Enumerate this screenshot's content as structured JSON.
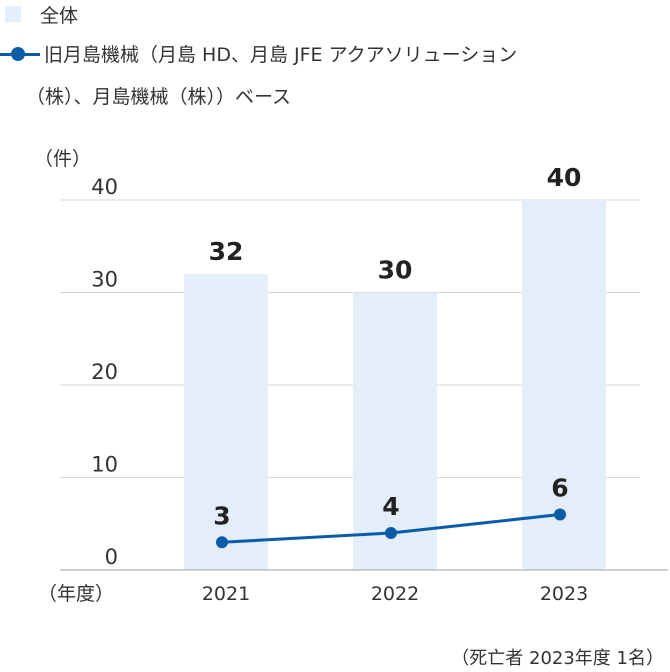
{
  "chart_data": {
    "type": "bar",
    "categories": [
      "2021",
      "2022",
      "2023"
    ],
    "series": [
      {
        "name": "全体",
        "kind": "bar",
        "values": [
          32,
          30,
          40
        ],
        "color": "#e3eef9"
      },
      {
        "name": "旧月島機械（月島 HD、月島 JFE アクアソリューション",
        "name_cont": "（株）、月島機械（株））ベース",
        "kind": "line",
        "values": [
          3,
          4,
          6
        ],
        "color": "#0a5ca8"
      }
    ],
    "ylabel": "（件）",
    "xlabel": "（年度）",
    "yticks": [
      "0",
      "10",
      "20",
      "30",
      "40"
    ],
    "ylim": [
      0,
      40
    ],
    "grid": true,
    "legend": "top-left",
    "note": "（死亡者 2023年度 1名）",
    "colors": {
      "bar": "#e3eef9",
      "line": "#0a5ca8",
      "grid": "#d7d7d7",
      "axis": "#bfbfbf",
      "text": "#333333"
    }
  }
}
